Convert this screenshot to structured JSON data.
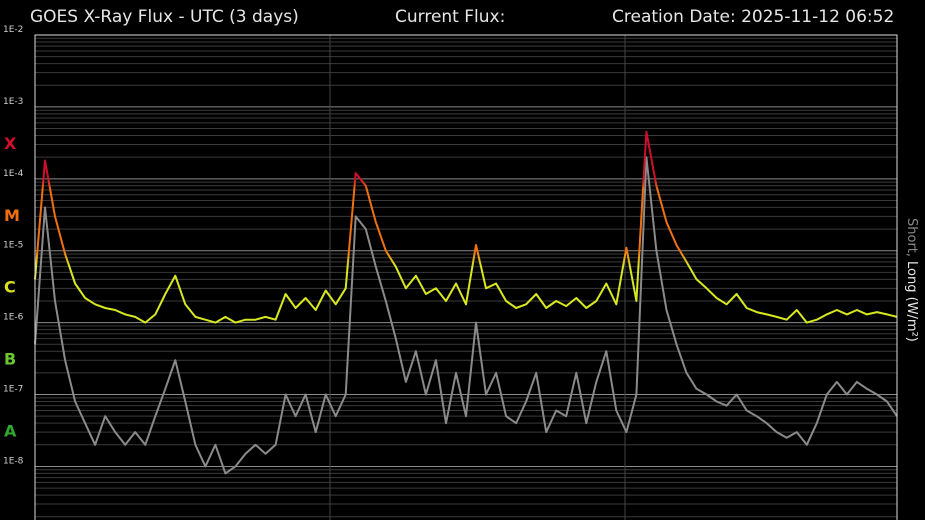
{
  "chart_data": {
    "type": "line",
    "title": "GOES X-Ray Flux - UTC (3 days)",
    "current_flux_label": "Current Flux:",
    "creation_date": "Creation Date: 2025-11-12 06:52",
    "log_scale": true,
    "grid": true,
    "minor_grid": true,
    "ylim": [
      1.8e-09,
      0.01
    ],
    "yticks": [
      {
        "value": 0.01,
        "label": "1E-2"
      },
      {
        "value": 0.001,
        "label": "1E-3"
      },
      {
        "value": 0.0001,
        "label": "1E-4"
      },
      {
        "value": 1e-05,
        "label": "1E-5"
      },
      {
        "value": 1e-06,
        "label": "1E-6"
      },
      {
        "value": 1e-07,
        "label": "1E-7"
      },
      {
        "value": 1e-08,
        "label": "1E-8"
      }
    ],
    "flare_classes": [
      {
        "label": "X",
        "min": 0.0001,
        "color": "#d0102a"
      },
      {
        "label": "M",
        "min": 1e-05,
        "color": "#f07010"
      },
      {
        "label": "C",
        "min": 1e-06,
        "color": "#d8e020"
      },
      {
        "label": "B",
        "min": 1e-07,
        "color": "#6cc830"
      },
      {
        "label": "A",
        "min": 1e-08,
        "color": "#30a830"
      }
    ],
    "series": [
      {
        "name": "Short,",
        "color": "#8a8a8a",
        "values": [
          5e-07,
          4e-05,
          2e-06,
          3e-07,
          8e-08,
          4e-08,
          2e-08,
          5e-08,
          3e-08,
          2e-08,
          3e-08,
          2e-08,
          5e-08,
          1.2e-07,
          3e-07,
          8e-08,
          2e-08,
          1e-08,
          2e-08,
          8e-09,
          1e-08,
          1.5e-08,
          2e-08,
          1.5e-08,
          2e-08,
          1e-07,
          5e-08,
          1e-07,
          3e-08,
          1e-07,
          5e-08,
          1e-07,
          3e-05,
          2e-05,
          6e-06,
          2e-06,
          6e-07,
          1.5e-07,
          4e-07,
          1e-07,
          3e-07,
          4e-08,
          2e-07,
          5e-08,
          1e-06,
          1e-07,
          2e-07,
          5e-08,
          4e-08,
          8e-08,
          2e-07,
          3e-08,
          6e-08,
          5e-08,
          2e-07,
          4e-08,
          1.5e-07,
          4e-07,
          6e-08,
          3e-08,
          1e-07,
          0.0002,
          1e-05,
          1.5e-06,
          5e-07,
          2e-07,
          1.2e-07,
          1e-07,
          8e-08,
          7e-08,
          1e-07,
          6e-08,
          5e-08,
          4e-08,
          3e-08,
          2.5e-08,
          3e-08,
          2e-08,
          4e-08,
          1e-07,
          1.5e-07,
          1e-07,
          1.5e-07,
          1.2e-07,
          1e-07,
          8e-08,
          5e-08
        ]
      },
      {
        "name": "Long (W/m²)",
        "color": "#d8e820",
        "values": [
          4e-06,
          0.00018,
          3e-05,
          9e-06,
          3.5e-06,
          2.2e-06,
          1.8e-06,
          1.6e-06,
          1.5e-06,
          1.3e-06,
          1.2e-06,
          1e-06,
          1.3e-06,
          2.5e-06,
          4.5e-06,
          1.8e-06,
          1.2e-06,
          1.1e-06,
          1e-06,
          1.2e-06,
          1e-06,
          1.1e-06,
          1.1e-06,
          1.2e-06,
          1.1e-06,
          2.5e-06,
          1.6e-06,
          2.2e-06,
          1.5e-06,
          2.8e-06,
          1.8e-06,
          3e-06,
          0.00012,
          8e-05,
          2.5e-05,
          1e-05,
          6e-06,
          3e-06,
          4.5e-06,
          2.5e-06,
          3e-06,
          2e-06,
          3.5e-06,
          1.8e-06,
          1.2e-05,
          3e-06,
          3.5e-06,
          2e-06,
          1.6e-06,
          1.8e-06,
          2.5e-06,
          1.6e-06,
          2e-06,
          1.7e-06,
          2.2e-06,
          1.6e-06,
          2e-06,
          3.5e-06,
          1.8e-06,
          1.1e-05,
          2e-06,
          0.00045,
          8e-05,
          2.5e-05,
          1.2e-05,
          7e-06,
          4e-06,
          3e-06,
          2.2e-06,
          1.8e-06,
          2.5e-06,
          1.6e-06,
          1.4e-06,
          1.3e-06,
          1.2e-06,
          1.1e-06,
          1.5e-06,
          1e-06,
          1.1e-06,
          1.3e-06,
          1.5e-06,
          1.3e-06,
          1.5e-06,
          1.3e-06,
          1.4e-06,
          1.3e-06,
          1.2e-06
        ]
      }
    ]
  }
}
